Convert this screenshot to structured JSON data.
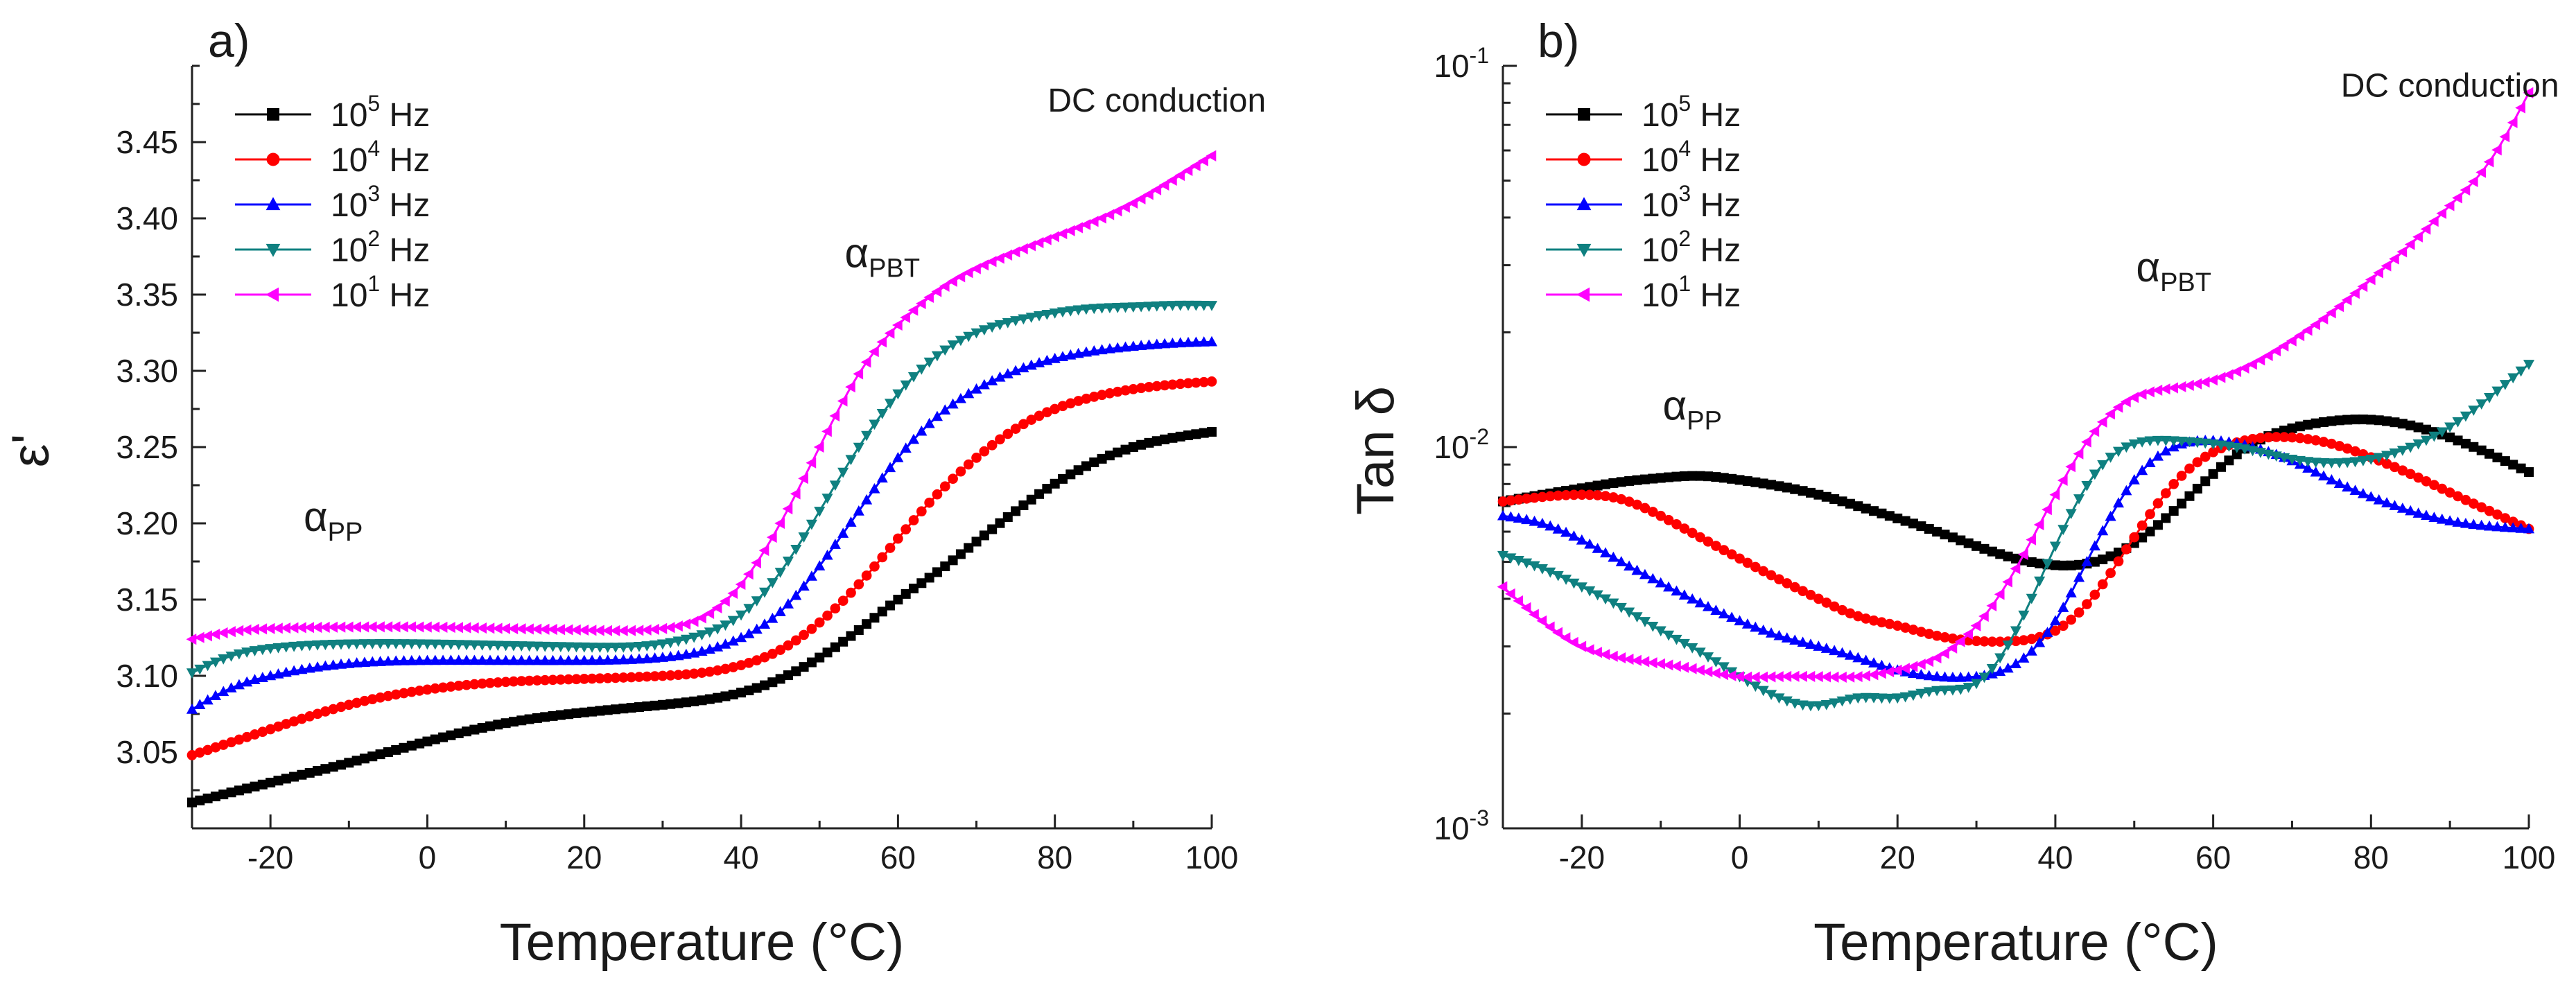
{
  "chart_data": [
    {
      "type": "scatter",
      "panel_label": "a)",
      "title": "",
      "xlabel": "Temperature (°C)",
      "ylabel": "ε'",
      "xlim": [
        -30,
        100
      ],
      "ylim": [
        3.0,
        3.5
      ],
      "y_scale": "linear",
      "x_ticks": [
        -20,
        0,
        20,
        40,
        60,
        80,
        100
      ],
      "x_tick_labels": [
        "-20",
        "0",
        "20",
        "40",
        "60",
        "80",
        "100"
      ],
      "y_ticks": [
        3.05,
        3.1,
        3.15,
        3.2,
        3.25,
        3.3,
        3.35,
        3.4,
        3.45
      ],
      "y_tick_labels": [
        "3.05",
        "3.10",
        "3.15",
        "3.20",
        "3.25",
        "3.30",
        "3.35",
        "3.40",
        "3.45"
      ],
      "legend_position": "top-left",
      "annotations": [
        {
          "symbol": "α",
          "sub": "PP",
          "x": -12,
          "y": 3.195
        },
        {
          "symbol": "α",
          "sub": "PBT",
          "x": 58,
          "y": 3.368
        },
        {
          "text": "DC conduction",
          "x": 93,
          "y": 3.47
        }
      ],
      "series": [
        {
          "name_base": "10",
          "name_exp": "5",
          "name_unit": "Hz",
          "color": "#000000",
          "marker": "square",
          "x": [
            -30,
            -20,
            -10,
            0,
            10,
            20,
            30,
            40,
            45,
            50,
            55,
            60,
            65,
            70,
            75,
            80,
            85,
            90,
            95,
            100
          ],
          "y": [
            3.017,
            3.03,
            3.043,
            3.057,
            3.069,
            3.076,
            3.081,
            3.089,
            3.098,
            3.112,
            3.13,
            3.15,
            3.168,
            3.188,
            3.208,
            3.226,
            3.24,
            3.25,
            3.256,
            3.26
          ]
        },
        {
          "name_base": "10",
          "name_exp": "4",
          "name_unit": "Hz",
          "color": "#ff0000",
          "marker": "circle",
          "x": [
            -30,
            -20,
            -10,
            0,
            10,
            20,
            30,
            35,
            40,
            45,
            50,
            55,
            60,
            65,
            70,
            75,
            80,
            85,
            90,
            95,
            100
          ],
          "y": [
            3.048,
            3.065,
            3.081,
            3.091,
            3.096,
            3.098,
            3.1,
            3.102,
            3.107,
            3.117,
            3.135,
            3.16,
            3.19,
            3.219,
            3.243,
            3.262,
            3.275,
            3.283,
            3.288,
            3.291,
            3.293
          ]
        },
        {
          "name_base": "10",
          "name_exp": "3",
          "name_unit": "Hz",
          "color": "#0000ff",
          "marker": "triangle-up",
          "x": [
            -30,
            -25,
            -20,
            -10,
            0,
            10,
            20,
            30,
            35,
            40,
            45,
            50,
            55,
            60,
            65,
            70,
            75,
            80,
            85,
            90,
            95,
            100
          ],
          "y": [
            3.078,
            3.092,
            3.1,
            3.108,
            3.11,
            3.11,
            3.11,
            3.112,
            3.116,
            3.125,
            3.142,
            3.172,
            3.208,
            3.243,
            3.27,
            3.288,
            3.3,
            3.308,
            3.313,
            3.316,
            3.318,
            3.319
          ]
        },
        {
          "name_base": "10",
          "name_exp": "2",
          "name_unit": "Hz",
          "color": "#0f8080",
          "marker": "triangle-down",
          "x": [
            -30,
            -25,
            -20,
            -10,
            0,
            10,
            20,
            30,
            35,
            40,
            45,
            50,
            55,
            60,
            65,
            70,
            75,
            80,
            85,
            90,
            95,
            100
          ],
          "y": [
            3.102,
            3.113,
            3.118,
            3.121,
            3.121,
            3.12,
            3.119,
            3.121,
            3.127,
            3.14,
            3.168,
            3.208,
            3.25,
            3.285,
            3.31,
            3.325,
            3.333,
            3.338,
            3.341,
            3.342,
            3.343,
            3.343
          ]
        },
        {
          "name_base": "10",
          "name_exp": "1",
          "name_unit": "Hz",
          "color": "#ff00ff",
          "marker": "triangle-left",
          "x": [
            -30,
            -25,
            -20,
            -10,
            0,
            10,
            20,
            30,
            35,
            40,
            45,
            50,
            55,
            60,
            65,
            70,
            75,
            80,
            85,
            90,
            95,
            100
          ],
          "y": [
            3.124,
            3.129,
            3.131,
            3.132,
            3.132,
            3.131,
            3.13,
            3.131,
            3.138,
            3.16,
            3.2,
            3.25,
            3.298,
            3.33,
            3.352,
            3.367,
            3.378,
            3.388,
            3.398,
            3.41,
            3.425,
            3.441
          ]
        }
      ]
    },
    {
      "type": "scatter",
      "panel_label": "b)",
      "title": "",
      "xlabel": "Temperature (°C)",
      "ylabel": "Tan δ",
      "xlim": [
        -30,
        100
      ],
      "ylim": [
        0.001,
        0.1
      ],
      "y_scale": "log",
      "x_ticks": [
        -20,
        0,
        20,
        40,
        60,
        80,
        100
      ],
      "x_tick_labels": [
        "-20",
        "0",
        "20",
        "40",
        "60",
        "80",
        "100"
      ],
      "y_ticks": [
        0.001,
        0.01,
        0.1
      ],
      "y_tick_labels": [
        {
          "base": "10",
          "exp": "-3"
        },
        {
          "base": "10",
          "exp": "-2"
        },
        {
          "base": "10",
          "exp": "-1"
        }
      ],
      "legend_position": "top-left",
      "annotations": [
        {
          "symbol": "α",
          "sub": "PP",
          "x": -6,
          "y": 0.0118
        },
        {
          "symbol": "α",
          "sub": "PBT",
          "x": 55,
          "y": 0.0272
        },
        {
          "text": "DC conduction",
          "x": 90,
          "y": 0.083
        }
      ],
      "series": [
        {
          "name_base": "10",
          "name_exp": "5",
          "name_unit": "Hz",
          "color": "#000000",
          "marker": "square",
          "x": [
            -30,
            -25,
            -20,
            -15,
            -10,
            -5,
            0,
            5,
            10,
            15,
            20,
            25,
            30,
            35,
            40,
            45,
            50,
            55,
            60,
            65,
            70,
            75,
            80,
            85,
            90,
            95,
            100
          ],
          "y": [
            0.0072,
            0.0075,
            0.0078,
            0.0081,
            0.0083,
            0.0084,
            0.0082,
            0.0079,
            0.0075,
            0.007,
            0.0065,
            0.006,
            0.0055,
            0.0051,
            0.0049,
            0.005,
            0.0056,
            0.0068,
            0.0085,
            0.0102,
            0.0112,
            0.0117,
            0.0118,
            0.0114,
            0.0106,
            0.0096,
            0.0086
          ]
        },
        {
          "name_base": "10",
          "name_exp": "4",
          "name_unit": "Hz",
          "color": "#ff0000",
          "marker": "circle",
          "x": [
            -30,
            -25,
            -20,
            -15,
            -10,
            -5,
            0,
            5,
            10,
            15,
            20,
            25,
            30,
            35,
            40,
            45,
            50,
            55,
            60,
            65,
            70,
            75,
            80,
            85,
            90,
            95,
            100
          ],
          "y": [
            0.0072,
            0.0074,
            0.0075,
            0.0073,
            0.0066,
            0.0058,
            0.0051,
            0.0045,
            0.004,
            0.0036,
            0.0034,
            0.0032,
            0.0031,
            0.0031,
            0.0033,
            0.0041,
            0.0058,
            0.008,
            0.0097,
            0.0105,
            0.0106,
            0.0102,
            0.0094,
            0.0085,
            0.0076,
            0.0068,
            0.0061
          ]
        },
        {
          "name_base": "10",
          "name_exp": "3",
          "name_unit": "Hz",
          "color": "#0000ff",
          "marker": "triangle-up",
          "x": [
            -30,
            -25,
            -20,
            -15,
            -10,
            -5,
            0,
            5,
            10,
            15,
            20,
            25,
            30,
            35,
            40,
            45,
            50,
            55,
            60,
            65,
            70,
            75,
            80,
            85,
            90,
            95,
            100
          ],
          "y": [
            0.0066,
            0.0063,
            0.0057,
            0.005,
            0.0044,
            0.0039,
            0.0035,
            0.0032,
            0.003,
            0.0028,
            0.0026,
            0.0025,
            0.0025,
            0.0027,
            0.0035,
            0.0055,
            0.0082,
            0.01,
            0.0104,
            0.01,
            0.0092,
            0.0082,
            0.0074,
            0.0068,
            0.0064,
            0.0062,
            0.0061
          ]
        },
        {
          "name_base": "10",
          "name_exp": "2",
          "name_unit": "Hz",
          "color": "#0f8080",
          "marker": "triangle-down",
          "x": [
            -30,
            -25,
            -20,
            -15,
            -10,
            -5,
            0,
            5,
            10,
            15,
            20,
            25,
            30,
            35,
            40,
            45,
            50,
            55,
            60,
            65,
            70,
            75,
            80,
            85,
            90,
            95,
            100
          ],
          "y": [
            0.0052,
            0.0048,
            0.0043,
            0.0038,
            0.0033,
            0.0029,
            0.0025,
            0.0022,
            0.0021,
            0.0022,
            0.0022,
            0.0023,
            0.0024,
            0.0033,
            0.0055,
            0.0085,
            0.0102,
            0.0104,
            0.0102,
            0.0098,
            0.0093,
            0.0091,
            0.0093,
            0.01,
            0.0113,
            0.0135,
            0.0165
          ]
        },
        {
          "name_base": "10",
          "name_exp": "1",
          "name_unit": "Hz",
          "color": "#ff00ff",
          "marker": "triangle-left",
          "x": [
            -30,
            -25,
            -20,
            -15,
            -10,
            -5,
            0,
            5,
            10,
            15,
            20,
            25,
            30,
            35,
            40,
            45,
            50,
            55,
            60,
            65,
            70,
            75,
            80,
            85,
            90,
            95,
            100
          ],
          "y": [
            0.0043,
            0.0035,
            0.003,
            0.0028,
            0.0027,
            0.0026,
            0.0025,
            0.0025,
            0.0025,
            0.0025,
            0.0026,
            0.0028,
            0.0034,
            0.0048,
            0.0075,
            0.011,
            0.0135,
            0.0143,
            0.015,
            0.0165,
            0.019,
            0.0225,
            0.0275,
            0.034,
            0.043,
            0.056,
            0.085
          ]
        }
      ]
    }
  ]
}
